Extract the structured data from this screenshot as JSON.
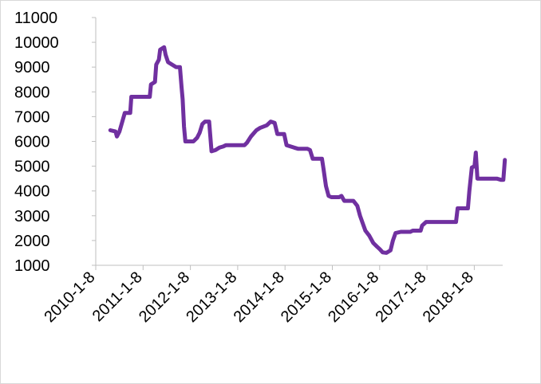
{
  "chart_data": {
    "type": "line",
    "title": "",
    "xlabel": "",
    "ylabel": "",
    "ylim": [
      1000,
      11000
    ],
    "yticks": [
      "1000",
      "2000",
      "3000",
      "4000",
      "5000",
      "6000",
      "7000",
      "8000",
      "9000",
      "10000",
      "11000"
    ],
    "xticks": [
      "2010-1-8",
      "2011-1-8",
      "2012-1-8",
      "2013-1-8",
      "2014-1-8",
      "2015-1-8",
      "2016-1-8",
      "2017-1-8",
      "2018-1-8"
    ],
    "grid": false,
    "legend": "none",
    "series": [
      {
        "color": "#7030a0",
        "points": [
          [
            "2010-5-1",
            6450
          ],
          [
            "2010-6-10",
            6400
          ],
          [
            "2010-6-20",
            6200
          ],
          [
            "2010-7-10",
            6400
          ],
          [
            "2010-8-1",
            6800
          ],
          [
            "2010-8-20",
            7150
          ],
          [
            "2010-10-1",
            7150
          ],
          [
            "2010-10-10",
            7800
          ],
          [
            "2011-3-1",
            7800
          ],
          [
            "2011-3-10",
            8300
          ],
          [
            "2011-4-10",
            8400
          ],
          [
            "2011-4-20",
            9100
          ],
          [
            "2011-5-10",
            9300
          ],
          [
            "2011-5-20",
            9700
          ],
          [
            "2011-6-20",
            9800
          ],
          [
            "2011-7-1",
            9500
          ],
          [
            "2011-7-20",
            9200
          ],
          [
            "2011-9-20",
            9000
          ],
          [
            "2011-10-20",
            9000
          ],
          [
            "2011-11-1",
            8200
          ],
          [
            "2011-11-10",
            7700
          ],
          [
            "2011-11-20",
            6600
          ],
          [
            "2011-12-1",
            6000
          ],
          [
            "2012-2-1",
            6000
          ],
          [
            "2012-3-1",
            6150
          ],
          [
            "2012-3-20",
            6350
          ],
          [
            "2012-4-10",
            6700
          ],
          [
            "2012-5-1",
            6800
          ],
          [
            "2012-6-1",
            6800
          ],
          [
            "2012-6-20",
            5600
          ],
          [
            "2012-7-20",
            5650
          ],
          [
            "2012-8-20",
            5750
          ],
          [
            "2012-9-20",
            5800
          ],
          [
            "2012-10-10",
            5850
          ],
          [
            "2012-12-1",
            5850
          ],
          [
            "2013-1-1",
            5850
          ],
          [
            "2013-3-1",
            5850
          ],
          [
            "2013-3-20",
            5950
          ],
          [
            "2013-4-20",
            6200
          ],
          [
            "2013-6-1",
            6450
          ],
          [
            "2013-7-1",
            6550
          ],
          [
            "2013-8-20",
            6650
          ],
          [
            "2013-9-20",
            6800
          ],
          [
            "2013-10-20",
            6750
          ],
          [
            "2013-11-10",
            6300
          ],
          [
            "2014-1-1",
            6300
          ],
          [
            "2014-1-20",
            5850
          ],
          [
            "2014-3-20",
            5750
          ],
          [
            "2014-4-20",
            5700
          ],
          [
            "2014-7-1",
            5700
          ],
          [
            "2014-7-20",
            5650
          ],
          [
            "2014-8-10",
            5300
          ],
          [
            "2014-10-20",
            5300
          ],
          [
            "2014-11-1",
            4900
          ],
          [
            "2014-11-20",
            4200
          ],
          [
            "2014-12-10",
            3800
          ],
          [
            "2015-1-1",
            3750
          ],
          [
            "2015-3-1",
            3750
          ],
          [
            "2015-3-20",
            3800
          ],
          [
            "2015-4-10",
            3600
          ],
          [
            "2015-6-20",
            3600
          ],
          [
            "2015-7-20",
            3400
          ],
          [
            "2015-8-10",
            3000
          ],
          [
            "2015-8-30",
            2700
          ],
          [
            "2015-9-20",
            2400
          ],
          [
            "2015-10-20",
            2200
          ],
          [
            "2015-11-20",
            1900
          ],
          [
            "2015-12-20",
            1750
          ],
          [
            "2016-1-10",
            1650
          ],
          [
            "2016-2-1",
            1520
          ],
          [
            "2016-3-1",
            1500
          ],
          [
            "2016-4-1",
            1600
          ],
          [
            "2016-4-20",
            2000
          ],
          [
            "2016-5-10",
            2300
          ],
          [
            "2016-6-20",
            2350
          ],
          [
            "2016-9-1",
            2350
          ],
          [
            "2016-9-20",
            2400
          ],
          [
            "2016-11-20",
            2400
          ],
          [
            "2016-12-1",
            2600
          ],
          [
            "2017-1-1",
            2750
          ],
          [
            "2017-7-1",
            2750
          ],
          [
            "2017-8-20",
            2750
          ],
          [
            "2017-9-1",
            3300
          ],
          [
            "2017-11-20",
            3300
          ],
          [
            "2017-12-1",
            4000
          ],
          [
            "2017-12-20",
            4950
          ],
          [
            "2018-1-10",
            5000
          ],
          [
            "2018-1-20",
            5550
          ],
          [
            "2018-2-1",
            4500
          ],
          [
            "2018-7-1",
            4500
          ],
          [
            "2018-8-1",
            4450
          ],
          [
            "2018-8-20",
            4450
          ],
          [
            "2018-9-1",
            5250
          ]
        ]
      }
    ]
  }
}
